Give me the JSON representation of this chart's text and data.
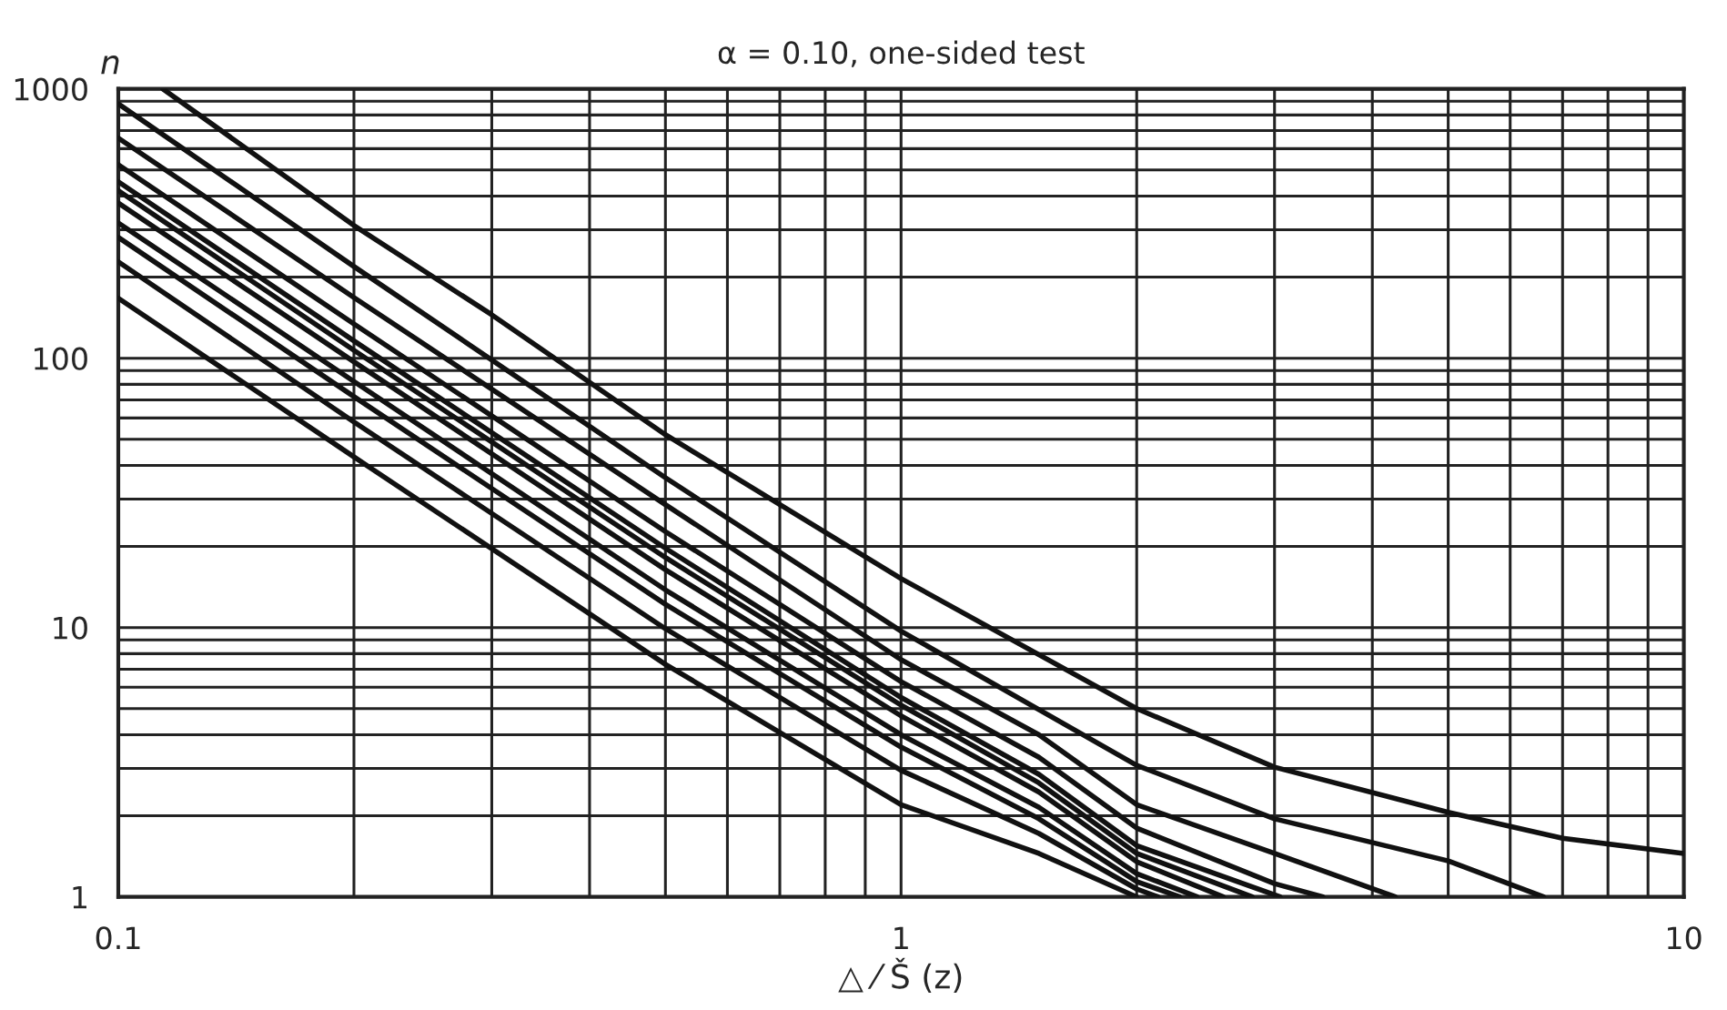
{
  "chart_data": {
    "type": "line",
    "title": "α = 0.10, one-sided test",
    "xlabel": "△ ⁄ Š (z)",
    "ylabel": "n",
    "log": "xy",
    "grid": true,
    "marker": "none",
    "line_style": "solid",
    "xlim": [
      0.1,
      10
    ],
    "ylim": [
      1,
      1000
    ],
    "xticks": [
      0.1,
      1,
      10
    ],
    "yticks": [
      1,
      10,
      100,
      1000
    ],
    "series": [
      {
        "color": "#111111",
        "x": [
          0.114,
          0.2,
          0.3,
          0.5,
          1,
          2,
          3,
          5,
          7,
          10
        ],
        "values": [
          1000,
          311,
          145,
          52,
          15.2,
          5,
          3.03,
          2.06,
          1.65,
          1.45
        ]
      },
      {
        "color": "#111111",
        "x": [
          0.1,
          0.2,
          0.5,
          1,
          2,
          3,
          5,
          6.62
        ],
        "values": [
          880,
          219,
          36,
          9.7,
          3.08,
          1.95,
          1.36,
          1
        ]
      },
      {
        "color": "#111111",
        "x": [
          0.1,
          0.2,
          0.5,
          1,
          1.5,
          2,
          3,
          4.28
        ],
        "values": [
          657,
          168,
          28.6,
          7.6,
          4.0,
          2.2,
          1.45,
          1
        ]
      },
      {
        "color": "#111111",
        "x": [
          0.1,
          0.2,
          0.5,
          1,
          1.5,
          2,
          3,
          3.46
        ],
        "values": [
          523,
          134,
          22.7,
          6.3,
          3.3,
          1.8,
          1.12,
          1
        ]
      },
      {
        "color": "#111111",
        "x": [
          0.1,
          0.2,
          0.5,
          1,
          1.5,
          2,
          3.05
        ],
        "values": [
          452,
          116,
          19.7,
          5.5,
          2.85,
          1.55,
          1
        ]
      },
      {
        "color": "#111111",
        "x": [
          0.1,
          0.2,
          0.5,
          1,
          1.5,
          2,
          2.81
        ],
        "values": [
          419,
          107,
          18.2,
          5.15,
          2.65,
          1.45,
          1
        ]
      },
      {
        "color": "#111111",
        "x": [
          0.1,
          0.2,
          0.5,
          1,
          1.5,
          2,
          2.58
        ],
        "values": [
          377,
          97,
          16.4,
          4.7,
          2.45,
          1.35,
          1
        ]
      },
      {
        "color": "#111111",
        "x": [
          0.1,
          0.2,
          0.5,
          1,
          1.5,
          2,
          2.39
        ],
        "values": [
          318,
          82,
          13.8,
          4.0,
          2.15,
          1.22,
          1
        ]
      },
      {
        "color": "#111111",
        "x": [
          0.1,
          0.2,
          0.5,
          1,
          1.5,
          2,
          2.27
        ],
        "values": [
          281,
          72,
          12.2,
          3.6,
          1.95,
          1.14,
          1
        ]
      },
      {
        "color": "#111111",
        "x": [
          0.1,
          0.2,
          0.5,
          1,
          1.5,
          2,
          2.13
        ],
        "values": [
          228,
          58,
          9.9,
          2.95,
          1.72,
          1.07,
          1
        ]
      },
      {
        "color": "#111111",
        "x": [
          0.1,
          0.2,
          0.5,
          1,
          1.5,
          2
        ],
        "values": [
          167,
          43,
          7.3,
          2.2,
          1.45,
          1
        ]
      }
    ]
  }
}
